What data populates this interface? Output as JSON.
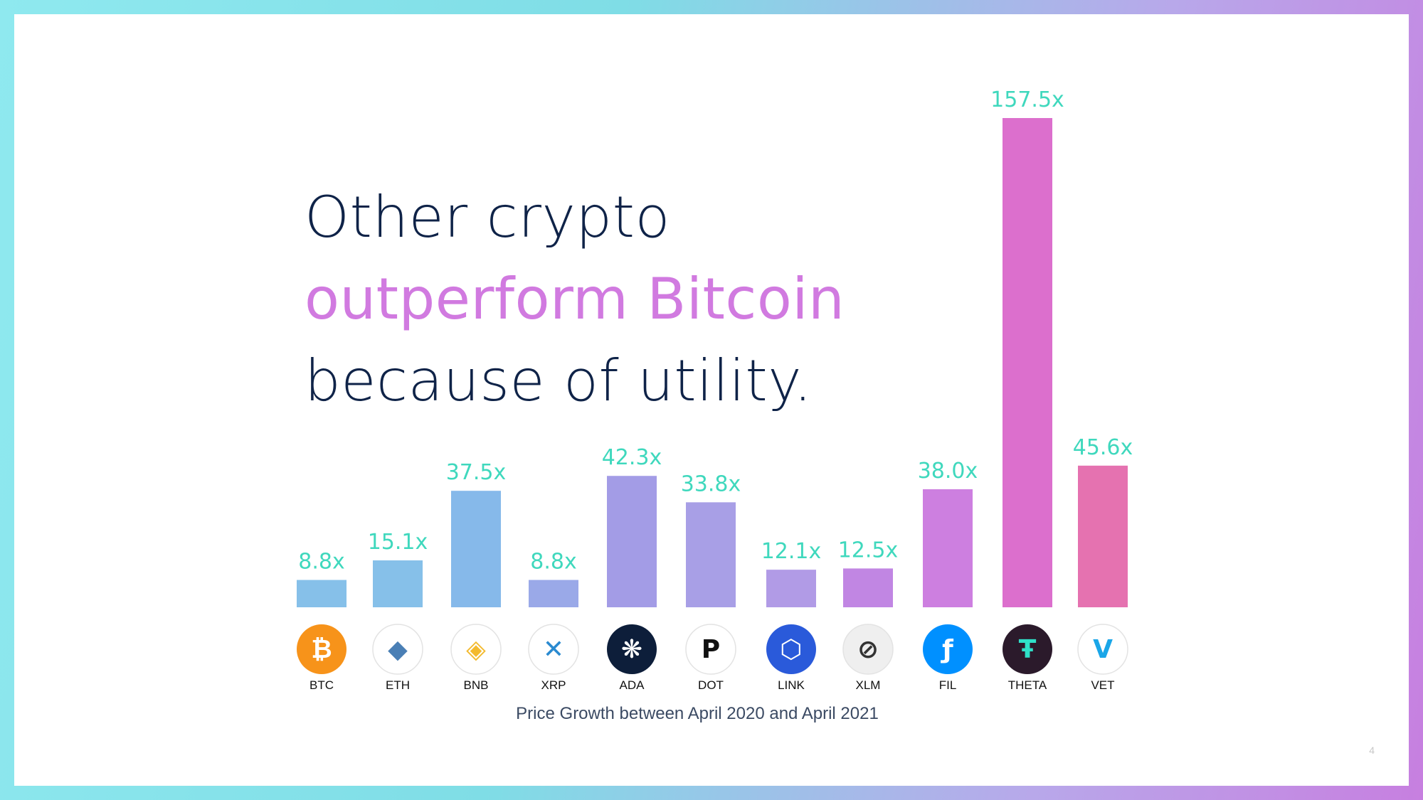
{
  "slide": {
    "headline": {
      "line1": "Other crypto",
      "line2": "outperform Bitcoin",
      "line3": "because of utility."
    },
    "page_number": "4"
  },
  "colors": {
    "text_dark": "#0f2348",
    "accent_pink": "#d17ae0",
    "value_label": "#3fd8bd"
  },
  "chart_data": {
    "type": "bar",
    "title": "",
    "xlabel": "Price Growth between April 2020 and April 2021",
    "ylabel": "",
    "categories": [
      "BTC",
      "ETH",
      "BNB",
      "XRP",
      "ADA",
      "DOT",
      "LINK",
      "XLM",
      "FIL",
      "THETA",
      "VET"
    ],
    "values": [
      8.8,
      15.1,
      37.5,
      8.8,
      42.3,
      33.8,
      12.1,
      12.5,
      38.0,
      157.5,
      45.6
    ],
    "value_labels": [
      "8.8x",
      "15.1x",
      "37.5x",
      "8.8x",
      "42.3x",
      "33.8x",
      "12.1x",
      "12.5x",
      "38.0x",
      "157.5x",
      "45.6x"
    ],
    "ylim": [
      0,
      157.5
    ],
    "grid": false,
    "bar_colors": [
      "#86c0e9",
      "#86c0e9",
      "#86b9ea",
      "#9aa9e8",
      "#a39ce6",
      "#a89fe6",
      "#b19be6",
      "#c186e3",
      "#cd7fe0",
      "#dc6fcd",
      "#e572b0"
    ],
    "icons": [
      {
        "name": "bitcoin-icon",
        "color": "#f7931a",
        "glyph": "₿"
      },
      {
        "name": "ethereum-icon",
        "color": "#ffffff",
        "glyph": "◆"
      },
      {
        "name": "binance-icon",
        "color": "#ffffff",
        "glyph": "◈"
      },
      {
        "name": "xrp-icon",
        "color": "#ffffff",
        "glyph": "✕"
      },
      {
        "name": "cardano-icon",
        "color": "#0d1e3a",
        "glyph": "❋"
      },
      {
        "name": "polkadot-icon",
        "color": "#ffffff",
        "glyph": "P"
      },
      {
        "name": "chainlink-icon",
        "color": "#2a5ada",
        "glyph": "⬡"
      },
      {
        "name": "stellar-icon",
        "color": "#efefef",
        "glyph": "⊘"
      },
      {
        "name": "filecoin-icon",
        "color": "#0090ff",
        "glyph": "ƒ"
      },
      {
        "name": "theta-icon",
        "color": "#2b1a2b",
        "glyph": "Ŧ"
      },
      {
        "name": "vechain-icon",
        "color": "#ffffff",
        "glyph": "V"
      }
    ]
  }
}
